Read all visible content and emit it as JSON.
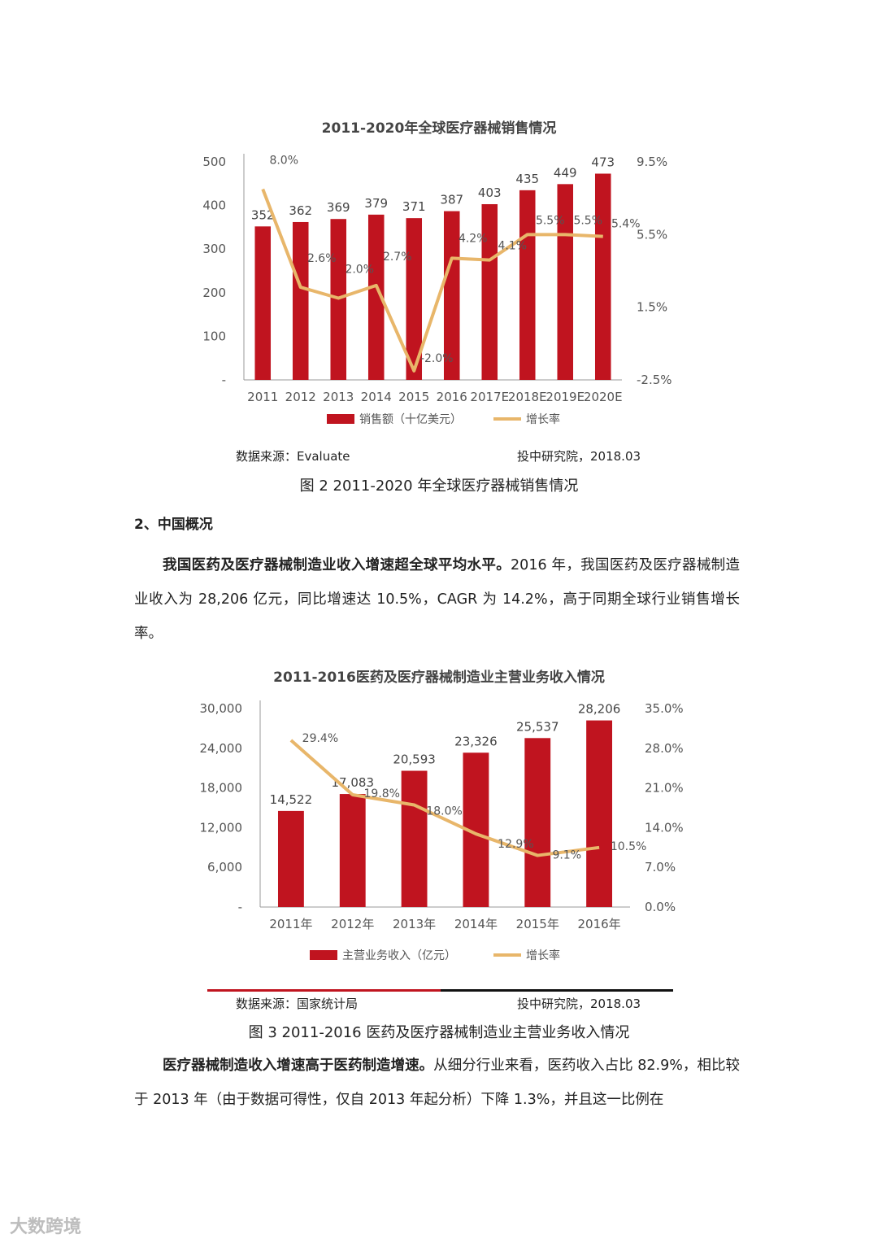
{
  "chart1": {
    "title": "2011-2020年全球医疗器械销售情况",
    "left_ticks": [
      "500",
      "400",
      "300",
      "200",
      "100",
      "-"
    ],
    "right_ticks": [
      "9.5%",
      "5.5%",
      "1.5%",
      "-2.5%"
    ],
    "legend_bar": "销售额（十亿美元）",
    "legend_line": "增长率",
    "source_left": "数据来源：Evaluate",
    "source_right": "投中研究院，2018.03",
    "caption": "图 2 2011-2020 年全球医疗器械销售情况"
  },
  "chart2": {
    "title": "2011-2016医药及医疗器械制造业主营业务收入情况",
    "left_ticks": [
      "30,000",
      "24,000",
      "18,000",
      "12,000",
      "6,000",
      "-"
    ],
    "right_ticks": [
      "35.0%",
      "28.0%",
      "21.0%",
      "14.0%",
      "7.0%",
      "0.0%"
    ],
    "legend_bar": "主营业务收入（亿元）",
    "legend_line": "增长率",
    "source_left": "数据来源：国家统计局",
    "source_right": "投中研究院，2018.03",
    "caption": "图 3 2011-2016 医药及医疗器械制造业主营业务收入情况"
  },
  "section_heading": "2、中国概况",
  "para1_bold": "我国医药及医疗器械制造业收入增速超全球平均水平。",
  "para1_rest": "2016 年，我国医药及医疗器械制造业收入为 28,206 亿元，同比增速达 10.5%，CAGR 为 14.2%，高于同期全球行业销售增长率。",
  "para2_bold": "医疗器械制造收入增速高于医药制造增速。",
  "para2_rest": "从细分行业来看，医药收入占比 82.9%，相比较于 2013 年（由于数据可得性，仅自 2013 年起分析）下降 1.3%，并且这一比例在",
  "watermark": "大数跨境",
  "colors": {
    "bar": "#c0141f",
    "line": "#e8b66a"
  },
  "chart_data": [
    {
      "type": "bar",
      "title": "2011-2020年全球医疗器械销售情况",
      "categories": [
        "2011",
        "2012",
        "2013",
        "2014",
        "2015",
        "2016",
        "2017E",
        "2018E",
        "2019E",
        "2020E"
      ],
      "ylim": [
        0,
        500
      ],
      "y2lim": [
        -2.5,
        9.5
      ],
      "legend": "bottom",
      "series": [
        {
          "name": "销售额（十亿美元）",
          "type": "bar",
          "axis": "left",
          "values": [
            352,
            362,
            369,
            379,
            371,
            387,
            403,
            435,
            449,
            473
          ],
          "labels": [
            "352",
            "362",
            "369",
            "379",
            "371",
            "387",
            "403",
            "435",
            "449",
            "473"
          ]
        },
        {
          "name": "增长率",
          "type": "line",
          "axis": "right",
          "values": [
            8.0,
            2.6,
            2.0,
            2.7,
            -2.0,
            4.2,
            4.1,
            5.5,
            5.5,
            5.4
          ],
          "labels": [
            "8.0%",
            "2.6%",
            "2.0%",
            "2.7%",
            "-2.0%",
            "4.2%",
            "4.1%",
            "5.5%",
            "5.5%",
            "5.4%"
          ]
        }
      ]
    },
    {
      "type": "bar",
      "title": "2011-2016医药及医疗器械制造业主营业务收入情况",
      "categories": [
        "2011年",
        "2012年",
        "2013年",
        "2014年",
        "2015年",
        "2016年"
      ],
      "ylim": [
        0,
        30000
      ],
      "y2lim": [
        0,
        35
      ],
      "legend": "bottom",
      "series": [
        {
          "name": "主营业务收入（亿元）",
          "type": "bar",
          "axis": "left",
          "values": [
            14522,
            17083,
            20593,
            23326,
            25537,
            28206
          ],
          "labels": [
            "14,522",
            "17,083",
            "20,593",
            "23,326",
            "25,537",
            "28,206"
          ]
        },
        {
          "name": "增长率",
          "type": "line",
          "axis": "right",
          "values": [
            29.4,
            19.8,
            18.0,
            12.9,
            9.1,
            10.5
          ],
          "labels": [
            "29.4%",
            "19.8%",
            "18.0%",
            "12.9%",
            "9.1%",
            "10.5%"
          ]
        }
      ]
    }
  ]
}
